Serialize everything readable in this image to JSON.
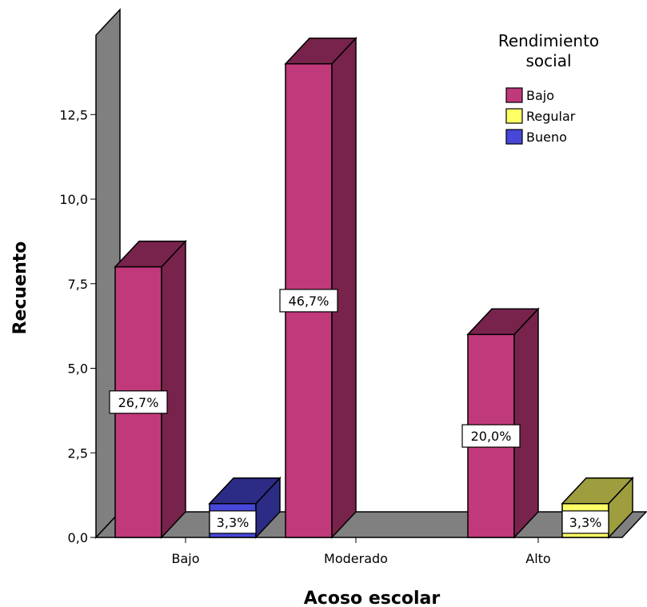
{
  "chart_data": {
    "type": "bar",
    "xlabel": "Acoso escolar",
    "ylabel": "Recuento",
    "categories": [
      "Bajo",
      "Moderado",
      "Alto"
    ],
    "ylim": [
      0,
      15
    ],
    "yticks": [
      "0,0",
      "2,5",
      "5,0",
      "7,5",
      "10,0",
      "12,5"
    ],
    "legend": {
      "title_lines": [
        "Rendimiento",
        "social"
      ],
      "placement": "top-right"
    },
    "series": [
      {
        "name": "Bajo",
        "color": "#c0397a",
        "values": [
          8,
          14,
          6
        ],
        "labels": [
          "26,7%",
          "46,7%",
          "20,0%"
        ]
      },
      {
        "name": "Regular",
        "color": "#ffff66",
        "values": [
          0,
          0,
          1
        ],
        "labels": [
          "",
          "",
          "3,3%"
        ]
      },
      {
        "name": "Bueno",
        "color": "#4747d9",
        "values": [
          1,
          0,
          0
        ],
        "labels": [
          "3,3%",
          "",
          ""
        ]
      }
    ]
  }
}
